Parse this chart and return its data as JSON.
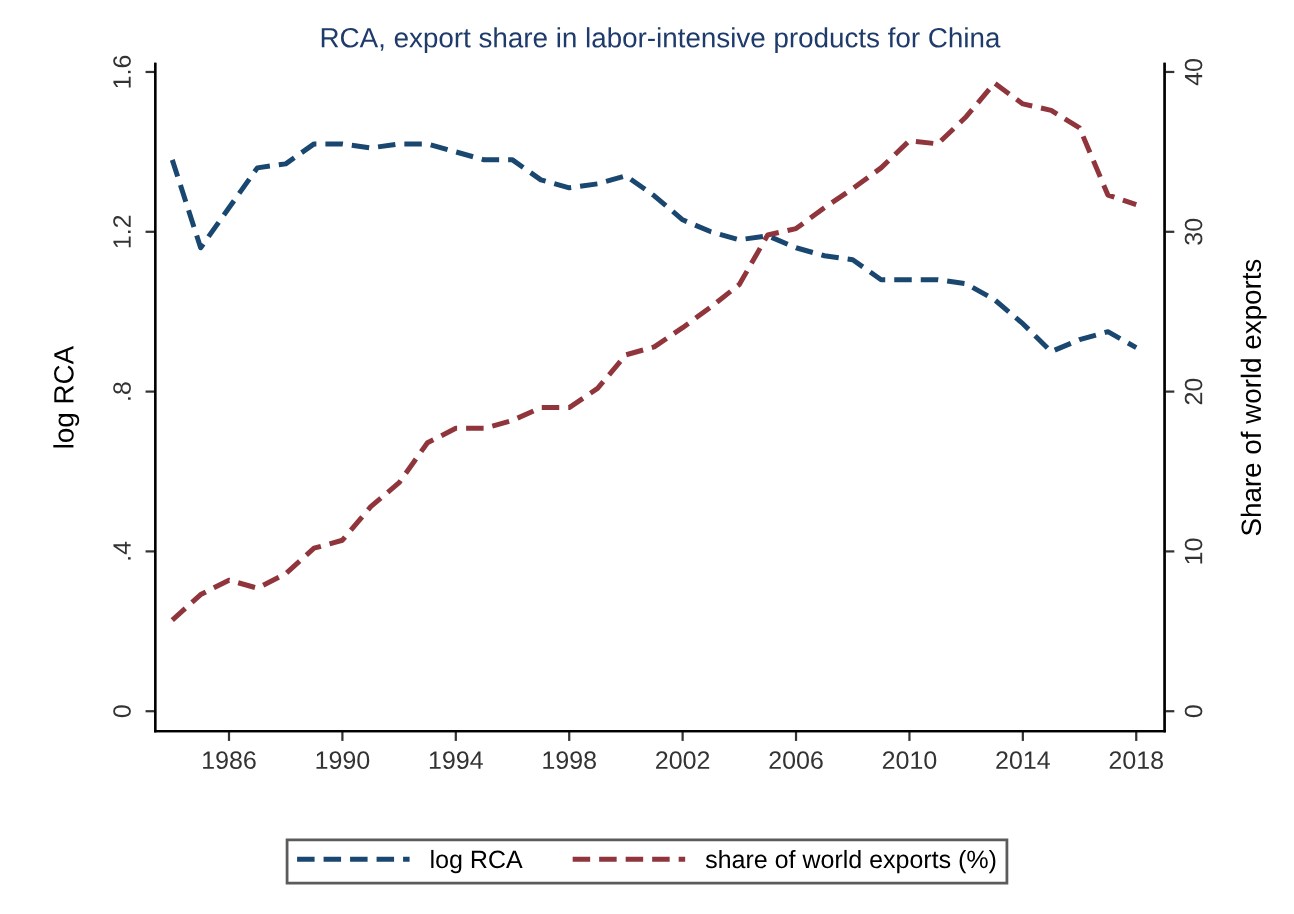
{
  "chart_data": {
    "type": "line",
    "title": "RCA, export share in labor-intensive products for China",
    "ylabel": "log RCA",
    "y2label": "Share of world exports",
    "x": [
      1984,
      1985,
      1986,
      1987,
      1988,
      1989,
      1990,
      1991,
      1992,
      1993,
      1994,
      1995,
      1996,
      1997,
      1998,
      1999,
      2000,
      2001,
      2002,
      2003,
      2004,
      2005,
      2006,
      2007,
      2008,
      2009,
      2010,
      2011,
      2012,
      2013,
      2014,
      2015,
      2016,
      2017,
      2018
    ],
    "series": [
      {
        "name": "log RCA",
        "color": "#1a476f",
        "values": [
          1.38,
          1.16,
          1.26,
          1.36,
          1.37,
          1.42,
          1.42,
          1.41,
          1.42,
          1.42,
          1.4,
          1.38,
          1.38,
          1.33,
          1.31,
          1.32,
          1.34,
          1.29,
          1.23,
          1.2,
          1.18,
          1.19,
          1.16,
          1.14,
          1.13,
          1.08,
          1.08,
          1.08,
          1.07,
          1.03,
          0.97,
          0.9,
          0.93,
          0.95,
          0.91
        ]
      },
      {
        "name": "share of world exports (%)",
        "color": "#90353b",
        "axis": "y2",
        "values": [
          5.7,
          7.3,
          8.2,
          7.7,
          8.6,
          10.2,
          10.7,
          12.8,
          14.3,
          16.8,
          17.7,
          17.7,
          18.2,
          19.0,
          19.0,
          20.2,
          22.3,
          22.8,
          24.0,
          25.3,
          26.7,
          29.8,
          30.2,
          31.5,
          32.7,
          34.0,
          35.7,
          35.5,
          37.2,
          39.3,
          38.0,
          37.6,
          36.5,
          32.3,
          31.7
        ]
      }
    ],
    "xlim": [
      1983.4,
      2019
    ],
    "xticks": [
      1986,
      1990,
      1994,
      1998,
      2002,
      2006,
      2010,
      2014,
      2018
    ],
    "ylim": [
      -0.05,
      1.62
    ],
    "yticks": [
      {
        "value": 0,
        "label": "0"
      },
      {
        "value": 0.4,
        "label": ".4"
      },
      {
        "value": 0.8,
        "label": ".8"
      },
      {
        "value": 1.2,
        "label": "1.2"
      },
      {
        "value": 1.6,
        "label": "1.6"
      }
    ],
    "y2lim": [
      -1.25,
      40.5
    ],
    "y2ticks": [
      0,
      10,
      20,
      30,
      40
    ],
    "line_style": "dashed",
    "marker": "none",
    "grid": false,
    "legend": "bottom"
  }
}
